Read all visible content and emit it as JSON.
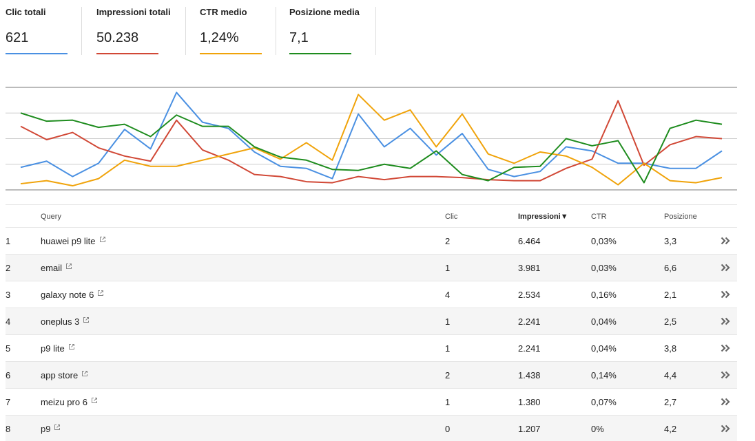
{
  "metrics": [
    {
      "label": "Clic totali",
      "value": "621",
      "color": "#4a90e2"
    },
    {
      "label": "Impressioni totali",
      "value": "50.238",
      "color": "#d14836"
    },
    {
      "label": "CTR medio",
      "value": "1,24%",
      "color": "#f0a30a"
    },
    {
      "label": "Posizione media",
      "value": "7,1",
      "color": "#1e8c1e"
    }
  ],
  "chart_data": {
    "type": "line",
    "ylim": [
      0,
      100
    ],
    "yticks": [
      0,
      25,
      50,
      75,
      100
    ],
    "grid": true,
    "series": [
      {
        "color": "#4a90e2",
        "values": [
          22,
          28,
          13,
          26,
          59,
          40,
          95,
          66,
          60,
          37,
          23,
          21,
          11,
          74,
          42,
          60,
          34,
          55,
          20,
          13,
          18,
          42,
          38,
          26,
          26,
          21,
          21,
          38
        ]
      },
      {
        "color": "#d14836",
        "values": [
          62,
          49,
          56,
          41,
          33,
          28,
          68,
          39,
          29,
          15,
          13,
          8,
          7,
          13,
          10,
          13,
          13,
          12,
          10,
          9,
          9,
          21,
          30,
          87,
          24,
          44,
          52,
          50
        ]
      },
      {
        "color": "#f0a30a",
        "values": [
          6,
          9,
          4,
          11,
          29,
          23,
          23,
          29,
          35,
          41,
          30,
          46,
          29,
          93,
          68,
          78,
          42,
          74,
          35,
          26,
          37,
          33,
          22,
          5,
          26,
          9,
          7,
          12
        ]
      },
      {
        "color": "#1e8c1e",
        "values": [
          75,
          67,
          68,
          61,
          64,
          52,
          73,
          62,
          62,
          42,
          32,
          29,
          20,
          19,
          25,
          21,
          38,
          15,
          9,
          22,
          23,
          50,
          43,
          48,
          7,
          60,
          68,
          64
        ]
      }
    ]
  },
  "table": {
    "headers": [
      "Query",
      "Clic",
      "Impressioni▼",
      "CTR",
      "Posizione"
    ],
    "rows": [
      [
        "1",
        "huawei p9 lite",
        "2",
        "6.464",
        "0,03%",
        "3,3"
      ],
      [
        "2",
        "email",
        "1",
        "3.981",
        "0,03%",
        "6,6"
      ],
      [
        "3",
        "galaxy note 6",
        "4",
        "2.534",
        "0,16%",
        "2,1"
      ],
      [
        "4",
        "oneplus 3",
        "1",
        "2.241",
        "0,04%",
        "2,5"
      ],
      [
        "5",
        "p9 lite",
        "1",
        "2.241",
        "0,04%",
        "3,8"
      ],
      [
        "6",
        "app store",
        "2",
        "1.438",
        "0,14%",
        "4,4"
      ],
      [
        "7",
        "meizu pro 6",
        "1",
        "1.380",
        "0,07%",
        "2,7"
      ],
      [
        "8",
        "p9",
        "0",
        "1.207",
        "0%",
        "4,2"
      ]
    ]
  }
}
